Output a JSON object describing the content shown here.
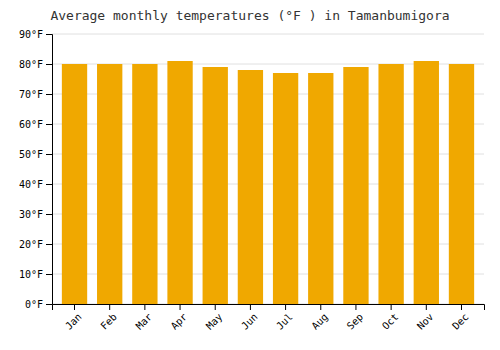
{
  "chart_data": {
    "type": "bar",
    "title": "Average monthly temperatures (°F ) in Tamanbumigora",
    "categories": [
      "Jan",
      "Feb",
      "Mar",
      "Apr",
      "May",
      "Jun",
      "Jul",
      "Aug",
      "Sep",
      "Oct",
      "Nov",
      "Dec"
    ],
    "values": [
      80,
      80,
      80,
      81,
      79,
      78,
      77,
      77,
      79,
      80,
      81,
      80
    ],
    "color": "#F0A800",
    "ylim": [
      0,
      90
    ],
    "yticks": [
      {
        "value": 0,
        "label": "0°F"
      },
      {
        "value": 10,
        "label": "10°F"
      },
      {
        "value": 20,
        "label": "20°F"
      },
      {
        "value": 30,
        "label": "30°F"
      },
      {
        "value": 40,
        "label": "40°F"
      },
      {
        "value": 50,
        "label": "50°F"
      },
      {
        "value": 60,
        "label": "60°F"
      },
      {
        "value": 70,
        "label": "70°F"
      },
      {
        "value": 80,
        "label": "80°F"
      },
      {
        "value": 90,
        "label": "90°F"
      }
    ],
    "grid": true
  }
}
